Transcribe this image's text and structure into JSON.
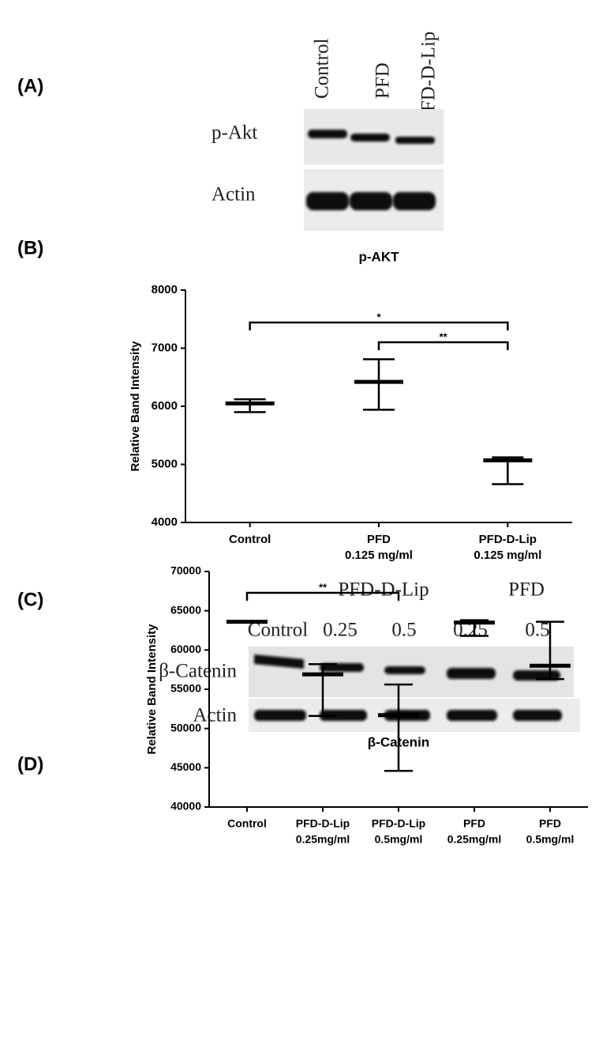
{
  "panels": [
    "(A)",
    "(B)",
    "(C)",
    "(D)"
  ],
  "blot_a": {
    "lanes": [
      "Control",
      "PFD",
      "PFD-D-Lip"
    ],
    "rows": [
      "p-Akt",
      "Actin"
    ]
  },
  "blot_c": {
    "groups": [
      "PFD-D-Lip",
      "PFD"
    ],
    "lanes": [
      "Control",
      "0.25",
      "0.5",
      "0.25",
      "0.5"
    ],
    "rows": [
      "β-Catenin",
      "Actin"
    ]
  },
  "chart_data": [
    {
      "type": "errorbar",
      "title": "p-AKT",
      "y_label": "Relative Band Intensity",
      "categories": [
        "Control",
        "PFD",
        "PFD-D-Lip"
      ],
      "category_sublabels": [
        null,
        "0.125 mg/ml",
        "0.125 mg/ml"
      ],
      "series": [
        {
          "color": "#000000",
          "values": [
            6050,
            6420,
            5070
          ],
          "low": [
            5900,
            5940,
            4660
          ],
          "high": [
            6120,
            6810,
            5120
          ]
        }
      ],
      "ylim": [
        4000,
        8000
      ],
      "yticks": [
        4000,
        5000,
        6000,
        7000,
        8000
      ],
      "annotations": [
        {
          "text": "*",
          "from": 0,
          "to": 2
        },
        {
          "text": "**",
          "from": 1,
          "to": 2
        }
      ]
    },
    {
      "type": "errorbar",
      "title": "β-Catenin",
      "y_label": "Relative Band Intensity",
      "categories": [
        "Control",
        "PFD-D-Lip",
        "PFD-D-Lip",
        "PFD",
        "PFD"
      ],
      "category_sublabels": [
        null,
        "0.25mg/ml",
        "0.5mg/ml",
        "0.25mg/ml",
        "0.5mg/ml"
      ],
      "series": [
        {
          "color": "#000000",
          "values": [
            63600,
            56900,
            51700,
            63500,
            58000
          ],
          "low": [
            63600,
            51600,
            44600,
            61800,
            56300
          ],
          "high": [
            63600,
            58200,
            55600,
            63800,
            63600
          ]
        }
      ],
      "ylim": [
        40000,
        70000
      ],
      "yticks": [
        40000,
        45000,
        50000,
        55000,
        60000,
        65000,
        70000
      ],
      "annotations": [
        {
          "text": "**",
          "from": 0,
          "to": 2
        }
      ]
    }
  ]
}
